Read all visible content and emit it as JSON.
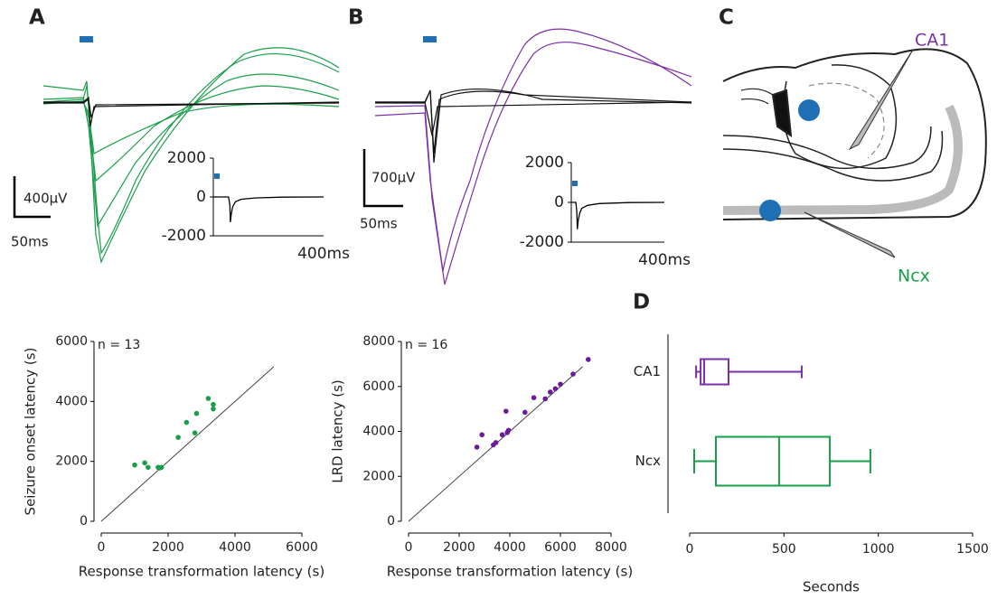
{
  "panel_labels": [
    "A",
    "B",
    "C",
    "D"
  ],
  "scale_bars": [
    {
      "amplitude": "400µV",
      "time": "50ms"
    },
    {
      "amplitude": "700µV",
      "time": "50ms"
    }
  ],
  "diagram_labels": {
    "ca1": "CA1",
    "ncx": "Ncx"
  },
  "chart_data": [
    {
      "type": "line",
      "xlabel": "400ms",
      "color": "#000000",
      "x": [
        0,
        55,
        60,
        62,
        65,
        70,
        80,
        100,
        150,
        250,
        400
      ],
      "values": [
        0,
        0,
        -400,
        -1300,
        -900,
        -500,
        -250,
        -120,
        -50,
        -10,
        0
      ],
      "xlim": [
        0,
        400
      ],
      "ylim": [
        -2000,
        2000
      ],
      "yticks": [
        -2000,
        0,
        2000
      ]
    },
    {
      "type": "line",
      "xlabel": "400ms",
      "color": "#000000",
      "x": [
        0,
        20,
        24,
        26,
        30,
        36,
        45,
        70,
        120,
        250,
        400
      ],
      "values": [
        0,
        0,
        -500,
        -1350,
        -900,
        -550,
        -300,
        -150,
        -60,
        -10,
        0
      ],
      "xlim": [
        0,
        400
      ],
      "ylim": [
        -2000,
        2000
      ],
      "yticks": [
        -2000,
        0,
        2000
      ]
    },
    {
      "type": "scatter",
      "annotation": "n = 13",
      "xlabel": "Response transformation latency (s)",
      "ylabel": "Seizure onset latency (s)",
      "color": "#1a9e4a",
      "x": [
        1000,
        1300,
        1400,
        1700,
        1800,
        2300,
        2550,
        2800,
        2850,
        3200,
        3350,
        3350,
        1750
      ],
      "values": [
        1880,
        1950,
        1800,
        1800,
        1800,
        2800,
        3300,
        2950,
        3600,
        4100,
        3750,
        3900,
        1780
      ],
      "xlim": [
        0,
        6000
      ],
      "ylim": [
        0,
        6000
      ],
      "xticks": [
        0,
        2000,
        4000,
        6000
      ],
      "yticks": [
        0,
        2000,
        4000,
        6000
      ]
    },
    {
      "type": "scatter",
      "annotation": "n = 16",
      "xlabel": "Response transformation latency (s)",
      "ylabel": "LRD latency (s)",
      "color": "#6a1b9a",
      "x": [
        2700,
        2900,
        3350,
        3450,
        3700,
        3850,
        3900,
        3950,
        4600,
        4950,
        5400,
        5600,
        5800,
        6000,
        6500,
        7100
      ],
      "values": [
        3300,
        3850,
        3400,
        3500,
        3850,
        4900,
        3950,
        4050,
        4850,
        5500,
        5450,
        5750,
        5900,
        6100,
        6550,
        7200
      ],
      "xlim": [
        0,
        8000
      ],
      "ylim": [
        0,
        8000
      ],
      "xticks": [
        0,
        2000,
        4000,
        6000,
        8000
      ],
      "yticks": [
        0,
        2000,
        4000,
        6000,
        8000
      ]
    },
    {
      "type": "box",
      "xlabel": "Seconds",
      "categories": [
        "CA1",
        "Ncx"
      ],
      "boxes": [
        {
          "min": 34,
          "q1": 58,
          "median": 77,
          "q3": 206,
          "max": 594,
          "color": "#7b2fa8"
        },
        {
          "min": 24,
          "q1": 139,
          "median": 474,
          "q3": 743,
          "max": 958,
          "color": "#1a9e4a"
        }
      ],
      "xlim": [
        0,
        1500
      ],
      "xticks": [
        0,
        500,
        1000,
        1500
      ]
    }
  ]
}
